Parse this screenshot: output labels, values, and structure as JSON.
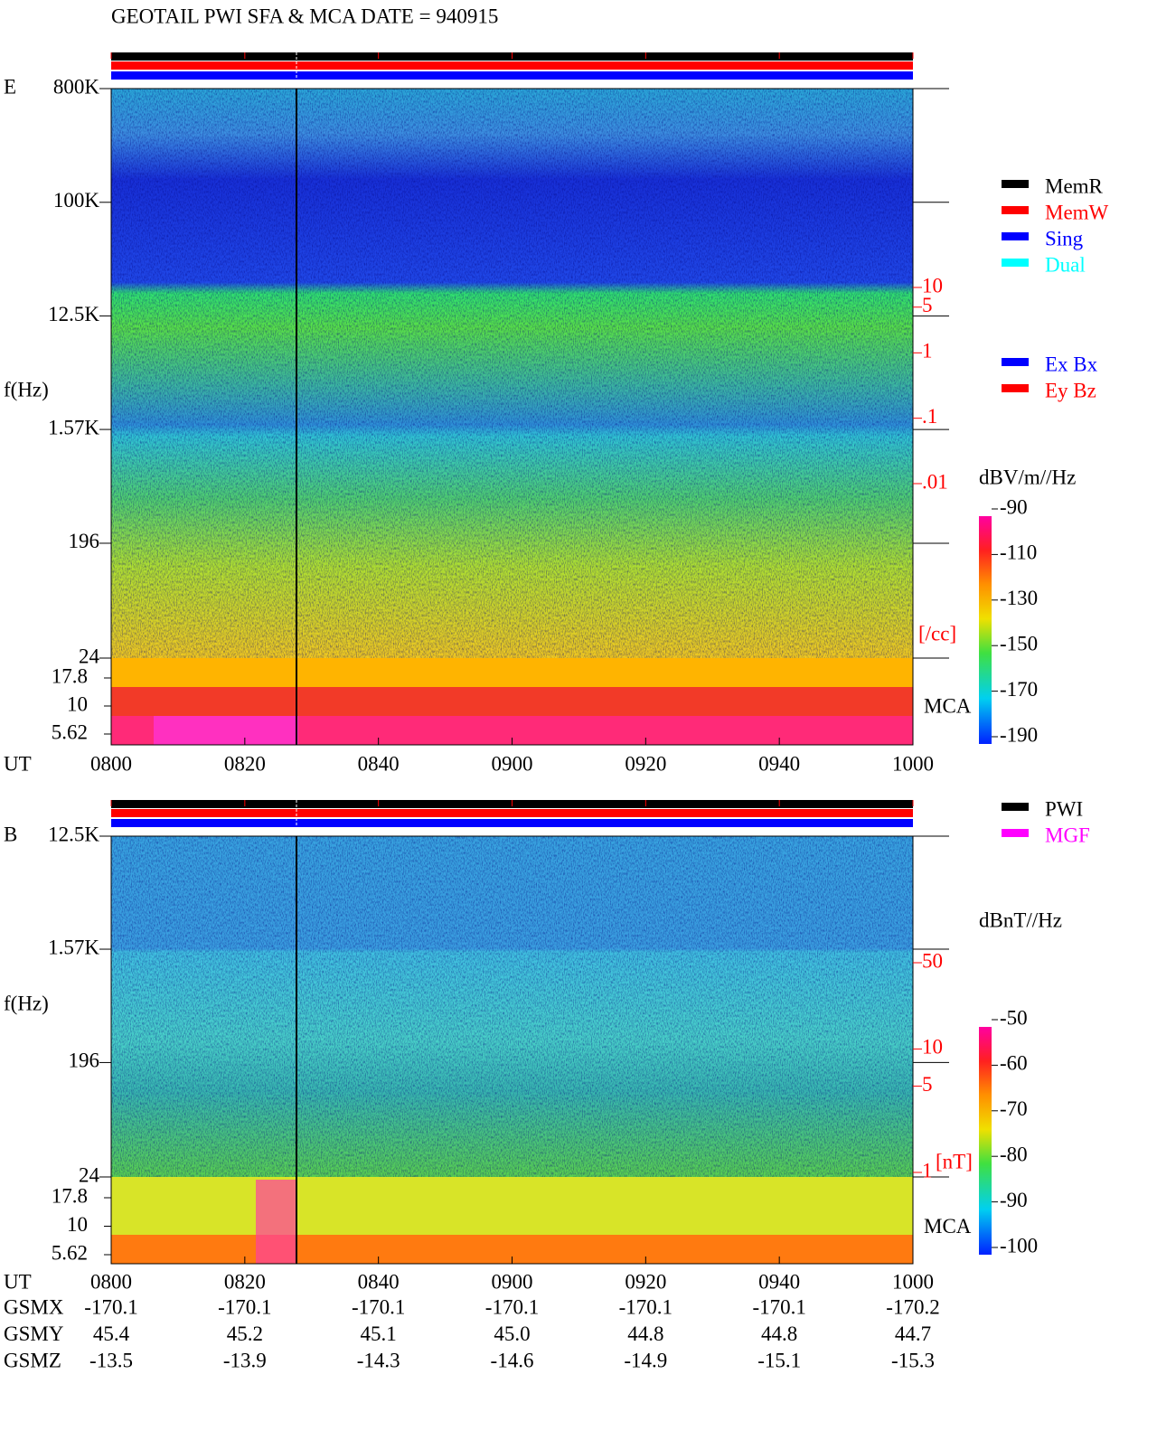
{
  "title": "GEOTAIL  PWI SFA & MCA   DATE = 940915",
  "chart_data": [
    {
      "type": "spectrogram",
      "panel_label": "E",
      "y_label": "f(Hz)",
      "x_label": "UT",
      "log_y": true,
      "ylim": [
        24,
        800000
      ],
      "yticks": [
        {
          "value": 800000,
          "label": "800K"
        },
        {
          "value": 100000,
          "label": "100K"
        },
        {
          "value": 12500,
          "label": "12.5K"
        },
        {
          "value": 1570,
          "label": "1.57K"
        },
        196,
        24
      ],
      "mca_label": "MCA",
      "mca_ylim": [
        5.62,
        17.8
      ],
      "mca_yticks": [
        17.8,
        10,
        5.62
      ],
      "xlim": [
        480,
        600
      ],
      "xticks": [
        {
          "value": 480,
          "label": "0800"
        },
        {
          "value": 500,
          "label": "0820"
        },
        {
          "value": 520,
          "label": "0840"
        },
        {
          "value": 540,
          "label": "0900"
        },
        {
          "value": 560,
          "label": "0920"
        },
        {
          "value": 580,
          "label": "0940"
        },
        {
          "value": 600,
          "label": "1000"
        }
      ],
      "density_label": "[/cc]",
      "density_ylim": [
        0.01,
        10
      ],
      "density_yticks": [
        10,
        5,
        1,
        {
          "value": 0.1,
          "label": ".1"
        },
        {
          "value": 0.01,
          "label": ".01"
        }
      ],
      "colorbar": {
        "label": "dBV/m//Hz",
        "lim": [
          -190,
          -90
        ],
        "ticks": [
          -90,
          -110,
          -130,
          -150,
          -170,
          -190
        ]
      },
      "legend": [
        {
          "name": "MemR",
          "color": "#000000"
        },
        {
          "name": "MemW",
          "color": "#ff0000"
        },
        {
          "name": "Sing",
          "color": "#0000ff"
        },
        {
          "name": "Dual",
          "color": "#00ffff"
        }
      ],
      "legend2": [
        {
          "name": "Ex Bx",
          "color": "#0000ff"
        },
        {
          "name": "Ey Bz",
          "color": "#ff0000"
        }
      ]
    },
    {
      "type": "spectrogram",
      "panel_label": "B",
      "y_label": "f(Hz)",
      "x_label": "UT",
      "log_y": true,
      "ylim": [
        24,
        12500
      ],
      "yticks": [
        {
          "value": 12500,
          "label": "12.5K"
        },
        {
          "value": 1570,
          "label": "1.57K"
        },
        196,
        24
      ],
      "mca_label": "MCA",
      "mca_ylim": [
        5.62,
        17.8
      ],
      "mca_yticks": [
        17.8,
        10,
        5.62
      ],
      "xlim": [
        480,
        600
      ],
      "xticks": [
        {
          "value": 480,
          "label": "0800"
        },
        {
          "value": 500,
          "label": "0820"
        },
        {
          "value": 520,
          "label": "0840"
        },
        {
          "value": 540,
          "label": "0900"
        },
        {
          "value": 560,
          "label": "0920"
        },
        {
          "value": 580,
          "label": "0940"
        },
        {
          "value": 600,
          "label": "1000"
        }
      ],
      "density_label": "[nT]",
      "density_ylim": [
        1,
        50
      ],
      "density_yticks": [
        50,
        10,
        5,
        1
      ],
      "colorbar": {
        "label": "dBnT//Hz",
        "lim": [
          -100,
          -50
        ],
        "ticks": [
          -50,
          -60,
          -70,
          -80,
          -90,
          -100
        ]
      },
      "legend": [
        {
          "name": "PWI",
          "color": "#000000"
        },
        {
          "name": "MGF",
          "color": "#ff00ff"
        }
      ],
      "orbit": [
        {
          "label": "GSMX",
          "values": [
            "-170.1",
            "-170.1",
            "-170.1",
            "-170.1",
            "-170.1",
            "-170.1",
            "-170.2"
          ]
        },
        {
          "label": "GSMY",
          "values": [
            "45.4",
            "45.2",
            "45.1",
            "45.0",
            "44.8",
            "44.8",
            "44.7"
          ]
        },
        {
          "label": "GSMZ",
          "values": [
            "-13.5",
            "-13.9",
            "-14.3",
            "-14.6",
            "-14.9",
            "-15.1",
            "-15.3"
          ]
        }
      ]
    }
  ]
}
